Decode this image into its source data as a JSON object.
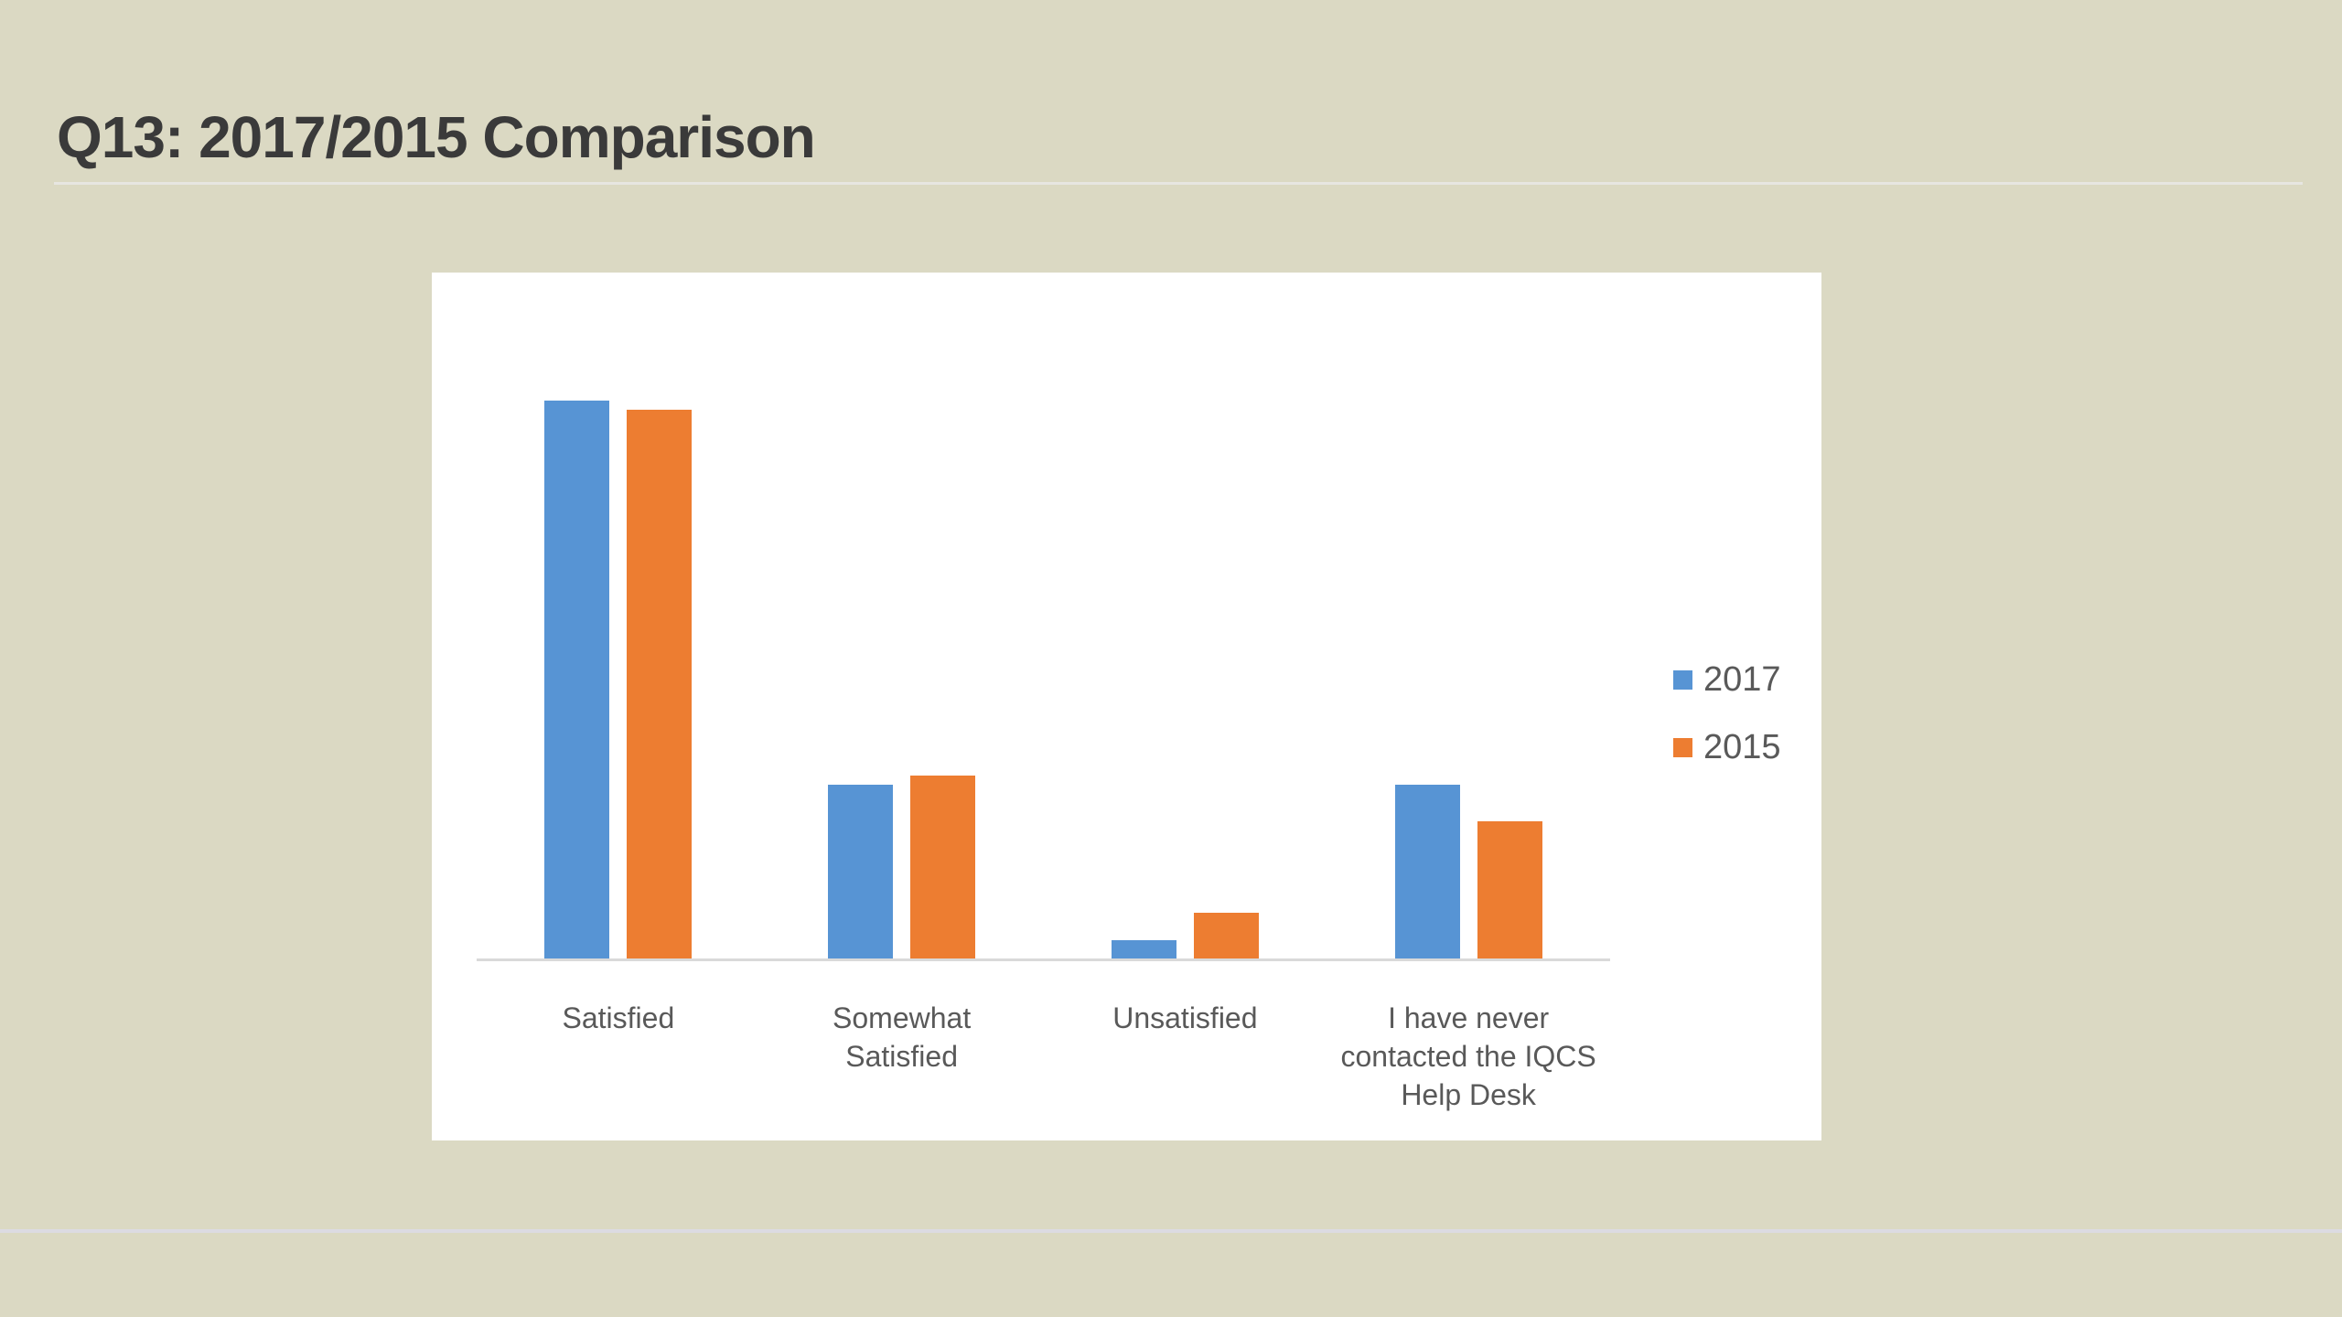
{
  "page": {
    "title": "Q13: 2017/2015 Comparison",
    "background_color": "#dbd9c3",
    "title_color": "#3a3a3a"
  },
  "chart_data": {
    "type": "bar",
    "orientation": "vertical",
    "title": "",
    "xlabel": "",
    "ylabel": "",
    "categories": [
      "Satisfied",
      "Somewhat Satisfied",
      "Unsatisfied",
      "I have never contacted the IQCS Help Desk"
    ],
    "category_display_lines": [
      [
        "Satisfied"
      ],
      [
        "Somewhat",
        "Satisfied"
      ],
      [
        "Unsatisfied"
      ],
      [
        "I have never",
        "contacted the IQCS",
        "Help Desk"
      ]
    ],
    "series": [
      {
        "name": "2017",
        "color": "#5794d4",
        "values": [
          61,
          19,
          2,
          19
        ]
      },
      {
        "name": "2015",
        "color": "#ed7d31",
        "values": [
          60,
          20,
          5,
          15
        ]
      }
    ],
    "value_axis": "hidden (no tick labels or gridlines shown; values estimated as percentages from bar heights)",
    "ylim": [
      0,
      75
    ],
    "grid": false,
    "legend_position": "right",
    "legend_entries": [
      "2017",
      "2015"
    ],
    "colors": {
      "plot_background": "#ffffff",
      "axis_line": "#d9d9d9",
      "label_text": "#595959"
    }
  }
}
